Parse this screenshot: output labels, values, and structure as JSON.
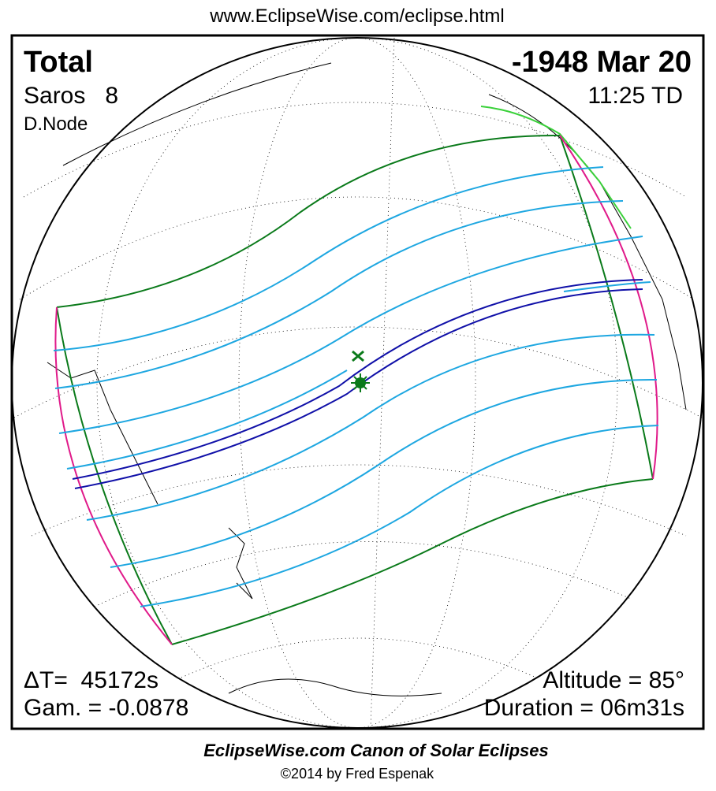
{
  "header": {
    "url": "www.EclipseWise.com/eclipse.html"
  },
  "eclipse": {
    "type": "Total",
    "date": "-1948 Mar 20",
    "saros": "Saros   8",
    "time": "11:25 TD",
    "node": "D.Node",
    "delta_t": "ΔT=  45172s",
    "gamma": "Gam. = -0.0878",
    "altitude": "Altitude = 85°",
    "duration": "Duration = 06m31s"
  },
  "footer": {
    "title": "EclipseWise.com Canon of Solar Eclipses",
    "copyright": "©2014 by Fred Espenak"
  }
}
